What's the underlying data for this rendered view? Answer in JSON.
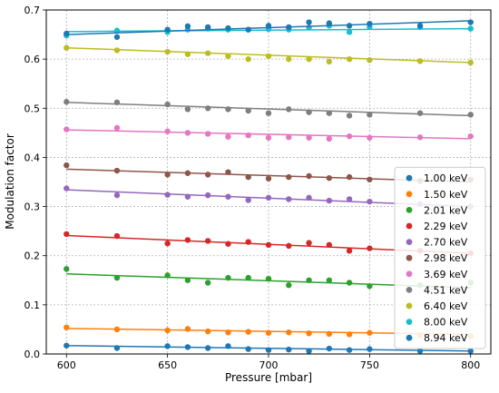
{
  "chart_data": {
    "type": "scatter",
    "title": "",
    "xlabel": "Pressure [mbar]",
    "ylabel": "Modulation factor",
    "xlim": [
      590,
      810
    ],
    "ylim": [
      0,
      0.7
    ],
    "x_ticks": [
      "600",
      "650",
      "700",
      "750",
      "800"
    ],
    "y_ticks": [
      "0.0",
      "0.1",
      "0.2",
      "0.3",
      "0.4",
      "0.5",
      "0.6",
      "0.7"
    ],
    "grid": true,
    "grid_style": "dotted",
    "legend_position": "lower-right",
    "x": [
      600,
      625,
      650,
      660,
      670,
      680,
      690,
      700,
      710,
      720,
      730,
      740,
      750,
      775,
      800
    ],
    "series": [
      {
        "name": "1.00 keV",
        "color": "#1f77b4",
        "values": [
          0.017,
          0.012,
          0.016,
          0.014,
          0.012,
          0.016,
          0.01,
          0.008,
          0.009,
          0.006,
          0.011,
          0.008,
          0.01,
          0.006,
          0.006
        ],
        "fit": [
          0.017,
          0.006
        ]
      },
      {
        "name": "1.50 keV",
        "color": "#ff7f0e",
        "values": [
          0.054,
          0.05,
          0.048,
          0.051,
          0.046,
          0.044,
          0.045,
          0.043,
          0.044,
          0.042,
          0.041,
          0.04,
          0.043,
          0.038,
          0.036
        ],
        "fit": [
          0.052,
          0.04
        ]
      },
      {
        "name": "2.01 keV",
        "color": "#2ca02c",
        "values": [
          0.173,
          0.155,
          0.16,
          0.15,
          0.145,
          0.155,
          0.155,
          0.153,
          0.14,
          0.15,
          0.15,
          0.145,
          0.138,
          0.14,
          0.145
        ],
        "fit": [
          0.163,
          0.135
        ]
      },
      {
        "name": "2.29 keV",
        "color": "#d62728",
        "values": [
          0.244,
          0.24,
          0.225,
          0.232,
          0.23,
          0.224,
          0.228,
          0.222,
          0.22,
          0.226,
          0.222,
          0.21,
          0.215,
          0.21,
          0.205
        ],
        "fit": [
          0.241,
          0.205
        ]
      },
      {
        "name": "2.70 keV",
        "color": "#9467bd",
        "values": [
          0.337,
          0.323,
          0.324,
          0.32,
          0.323,
          0.32,
          0.313,
          0.318,
          0.315,
          0.318,
          0.312,
          0.315,
          0.31,
          0.305,
          0.3
        ],
        "fit": [
          0.334,
          0.3
        ]
      },
      {
        "name": "2.98 keV",
        "color": "#8c564b",
        "values": [
          0.384,
          0.373,
          0.365,
          0.368,
          0.365,
          0.37,
          0.36,
          0.357,
          0.36,
          0.362,
          0.358,
          0.36,
          0.355,
          0.352,
          0.355
        ],
        "fit": [
          0.376,
          0.35
        ]
      },
      {
        "name": "3.69 keV",
        "color": "#e377c2",
        "values": [
          0.457,
          0.46,
          0.453,
          0.45,
          0.448,
          0.442,
          0.445,
          0.44,
          0.441,
          0.44,
          0.438,
          0.443,
          0.44,
          0.441,
          0.443
        ],
        "fit": [
          0.456,
          0.438
        ]
      },
      {
        "name": "4.51 keV",
        "color": "#7f7f7f",
        "values": [
          0.513,
          0.512,
          0.508,
          0.498,
          0.5,
          0.498,
          0.495,
          0.49,
          0.498,
          0.492,
          0.49,
          0.485,
          0.487,
          0.49,
          0.487
        ],
        "fit": [
          0.512,
          0.485
        ]
      },
      {
        "name": "6.40 keV",
        "color": "#bcbd22",
        "values": [
          0.623,
          0.618,
          0.615,
          0.61,
          0.612,
          0.606,
          0.6,
          0.606,
          0.6,
          0.6,
          0.595,
          0.6,
          0.598,
          0.596,
          0.593
        ],
        "fit": [
          0.623,
          0.593
        ]
      },
      {
        "name": "8.00 keV",
        "color": "#17becf",
        "values": [
          0.648,
          0.658,
          0.655,
          0.66,
          0.662,
          0.66,
          0.66,
          0.661,
          0.66,
          0.664,
          0.668,
          0.655,
          0.665,
          0.665,
          0.662
        ],
        "fit": [
          0.656,
          0.662
        ]
      },
      {
        "name": "8.94 keV",
        "color": "#1f77b4",
        "values": [
          0.652,
          0.645,
          0.66,
          0.667,
          0.665,
          0.663,
          0.66,
          0.668,
          0.665,
          0.675,
          0.673,
          0.668,
          0.672,
          0.668,
          0.675
        ],
        "fit": [
          0.65,
          0.678
        ]
      }
    ]
  }
}
